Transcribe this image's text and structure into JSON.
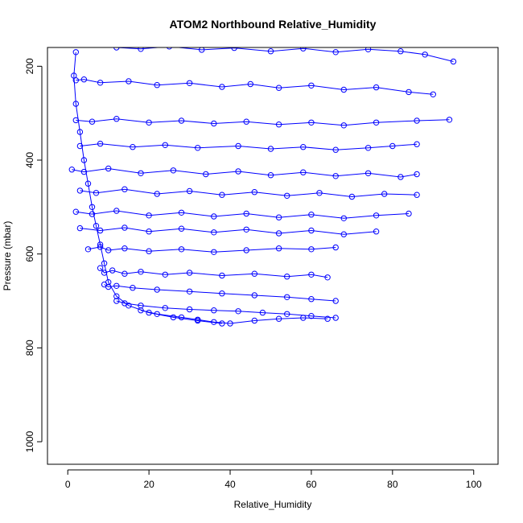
{
  "chart_data": {
    "type": "scatter",
    "title": "ATOM2 Northbound Relative_Humidity",
    "xlabel": "Relative_Humidity",
    "ylabel": "Pressure (mbar)",
    "xlim": [
      -5,
      106
    ],
    "ylim": [
      1048,
      160
    ],
    "y_axis_reversed": true,
    "grid": false,
    "legend": "none",
    "x_ticks": [
      0,
      20,
      40,
      60,
      80,
      100
    ],
    "y_ticks": [
      200,
      400,
      600,
      800,
      1000
    ],
    "marker": "open-circle",
    "connected_by_lines": true,
    "series_color": "#0000ff",
    "series": [
      {
        "x": [
          12,
          18,
          25,
          33,
          41,
          50,
          58,
          66,
          74,
          82,
          88,
          95
        ],
        "y": [
          160,
          163,
          158,
          165,
          161,
          168,
          162,
          170,
          164,
          168,
          175,
          190
        ]
      },
      {
        "x": [
          2,
          4,
          8,
          15,
          22,
          30,
          38,
          45,
          52,
          60,
          68,
          76,
          84,
          90
        ],
        "y": [
          230,
          228,
          235,
          232,
          240,
          236,
          244,
          238,
          246,
          241,
          250,
          245,
          255,
          260
        ]
      },
      {
        "x": [
          2,
          6,
          12,
          20,
          28,
          36,
          44,
          52,
          60,
          68,
          76,
          86,
          94
        ],
        "y": [
          315,
          318,
          312,
          320,
          316,
          322,
          318,
          324,
          320,
          326,
          320,
          316,
          314
        ]
      },
      {
        "x": [
          3,
          8,
          16,
          24,
          32,
          42,
          50,
          58,
          66,
          74,
          80,
          86
        ],
        "y": [
          370,
          365,
          372,
          368,
          374,
          370,
          376,
          372,
          378,
          374,
          370,
          366
        ]
      },
      {
        "x": [
          1,
          4,
          10,
          18,
          26,
          34,
          42,
          50,
          58,
          66,
          74,
          82,
          86
        ],
        "y": [
          420,
          425,
          418,
          428,
          422,
          430,
          424,
          432,
          426,
          434,
          428,
          436,
          430
        ]
      },
      {
        "x": [
          3,
          7,
          14,
          22,
          30,
          38,
          46,
          54,
          62,
          70,
          78,
          86
        ],
        "y": [
          465,
          470,
          462,
          472,
          466,
          474,
          468,
          476,
          470,
          478,
          472,
          474
        ]
      },
      {
        "x": [
          2,
          6,
          12,
          20,
          28,
          36,
          44,
          52,
          60,
          68,
          76,
          84
        ],
        "y": [
          510,
          515,
          508,
          518,
          512,
          520,
          514,
          522,
          516,
          524,
          518,
          514
        ]
      },
      {
        "x": [
          3,
          8,
          14,
          20,
          28,
          36,
          44,
          52,
          60,
          68,
          76
        ],
        "y": [
          545,
          550,
          544,
          552,
          546,
          554,
          548,
          556,
          550,
          558,
          552
        ]
      },
      {
        "x": [
          5,
          8,
          10,
          14,
          20,
          28,
          36,
          44,
          52,
          60,
          66
        ],
        "y": [
          590,
          585,
          592,
          588,
          594,
          590,
          596,
          592,
          588,
          590,
          586
        ]
      },
      {
        "x": [
          8,
          9,
          11,
          14,
          18,
          24,
          30,
          38,
          46,
          54,
          60,
          64
        ],
        "y": [
          630,
          640,
          635,
          642,
          638,
          644,
          640,
          646,
          642,
          648,
          644,
          650
        ]
      },
      {
        "x": [
          9,
          10,
          12,
          16,
          22,
          30,
          38,
          46,
          54,
          60,
          66
        ],
        "y": [
          665,
          670,
          668,
          672,
          676,
          680,
          684,
          688,
          692,
          696,
          700
        ]
      },
      {
        "x": [
          12,
          14,
          18,
          24,
          30,
          36,
          42,
          48,
          54,
          60,
          66
        ],
        "y": [
          700,
          705,
          710,
          715,
          718,
          720,
          722,
          725,
          728,
          732,
          736
        ]
      },
      {
        "x": [
          18,
          22,
          28,
          32,
          36,
          40,
          46,
          52,
          58,
          64
        ],
        "y": [
          720,
          728,
          735,
          740,
          745,
          748,
          742,
          738,
          736,
          738
        ]
      },
      {
        "x": [
          2,
          1.5,
          2,
          3,
          4,
          5,
          6,
          7,
          8,
          9,
          10,
          12,
          15,
          20,
          26,
          32,
          38
        ],
        "y": [
          170,
          220,
          280,
          340,
          400,
          450,
          500,
          540,
          580,
          620,
          660,
          690,
          710,
          725,
          735,
          742,
          748
        ]
      }
    ]
  }
}
